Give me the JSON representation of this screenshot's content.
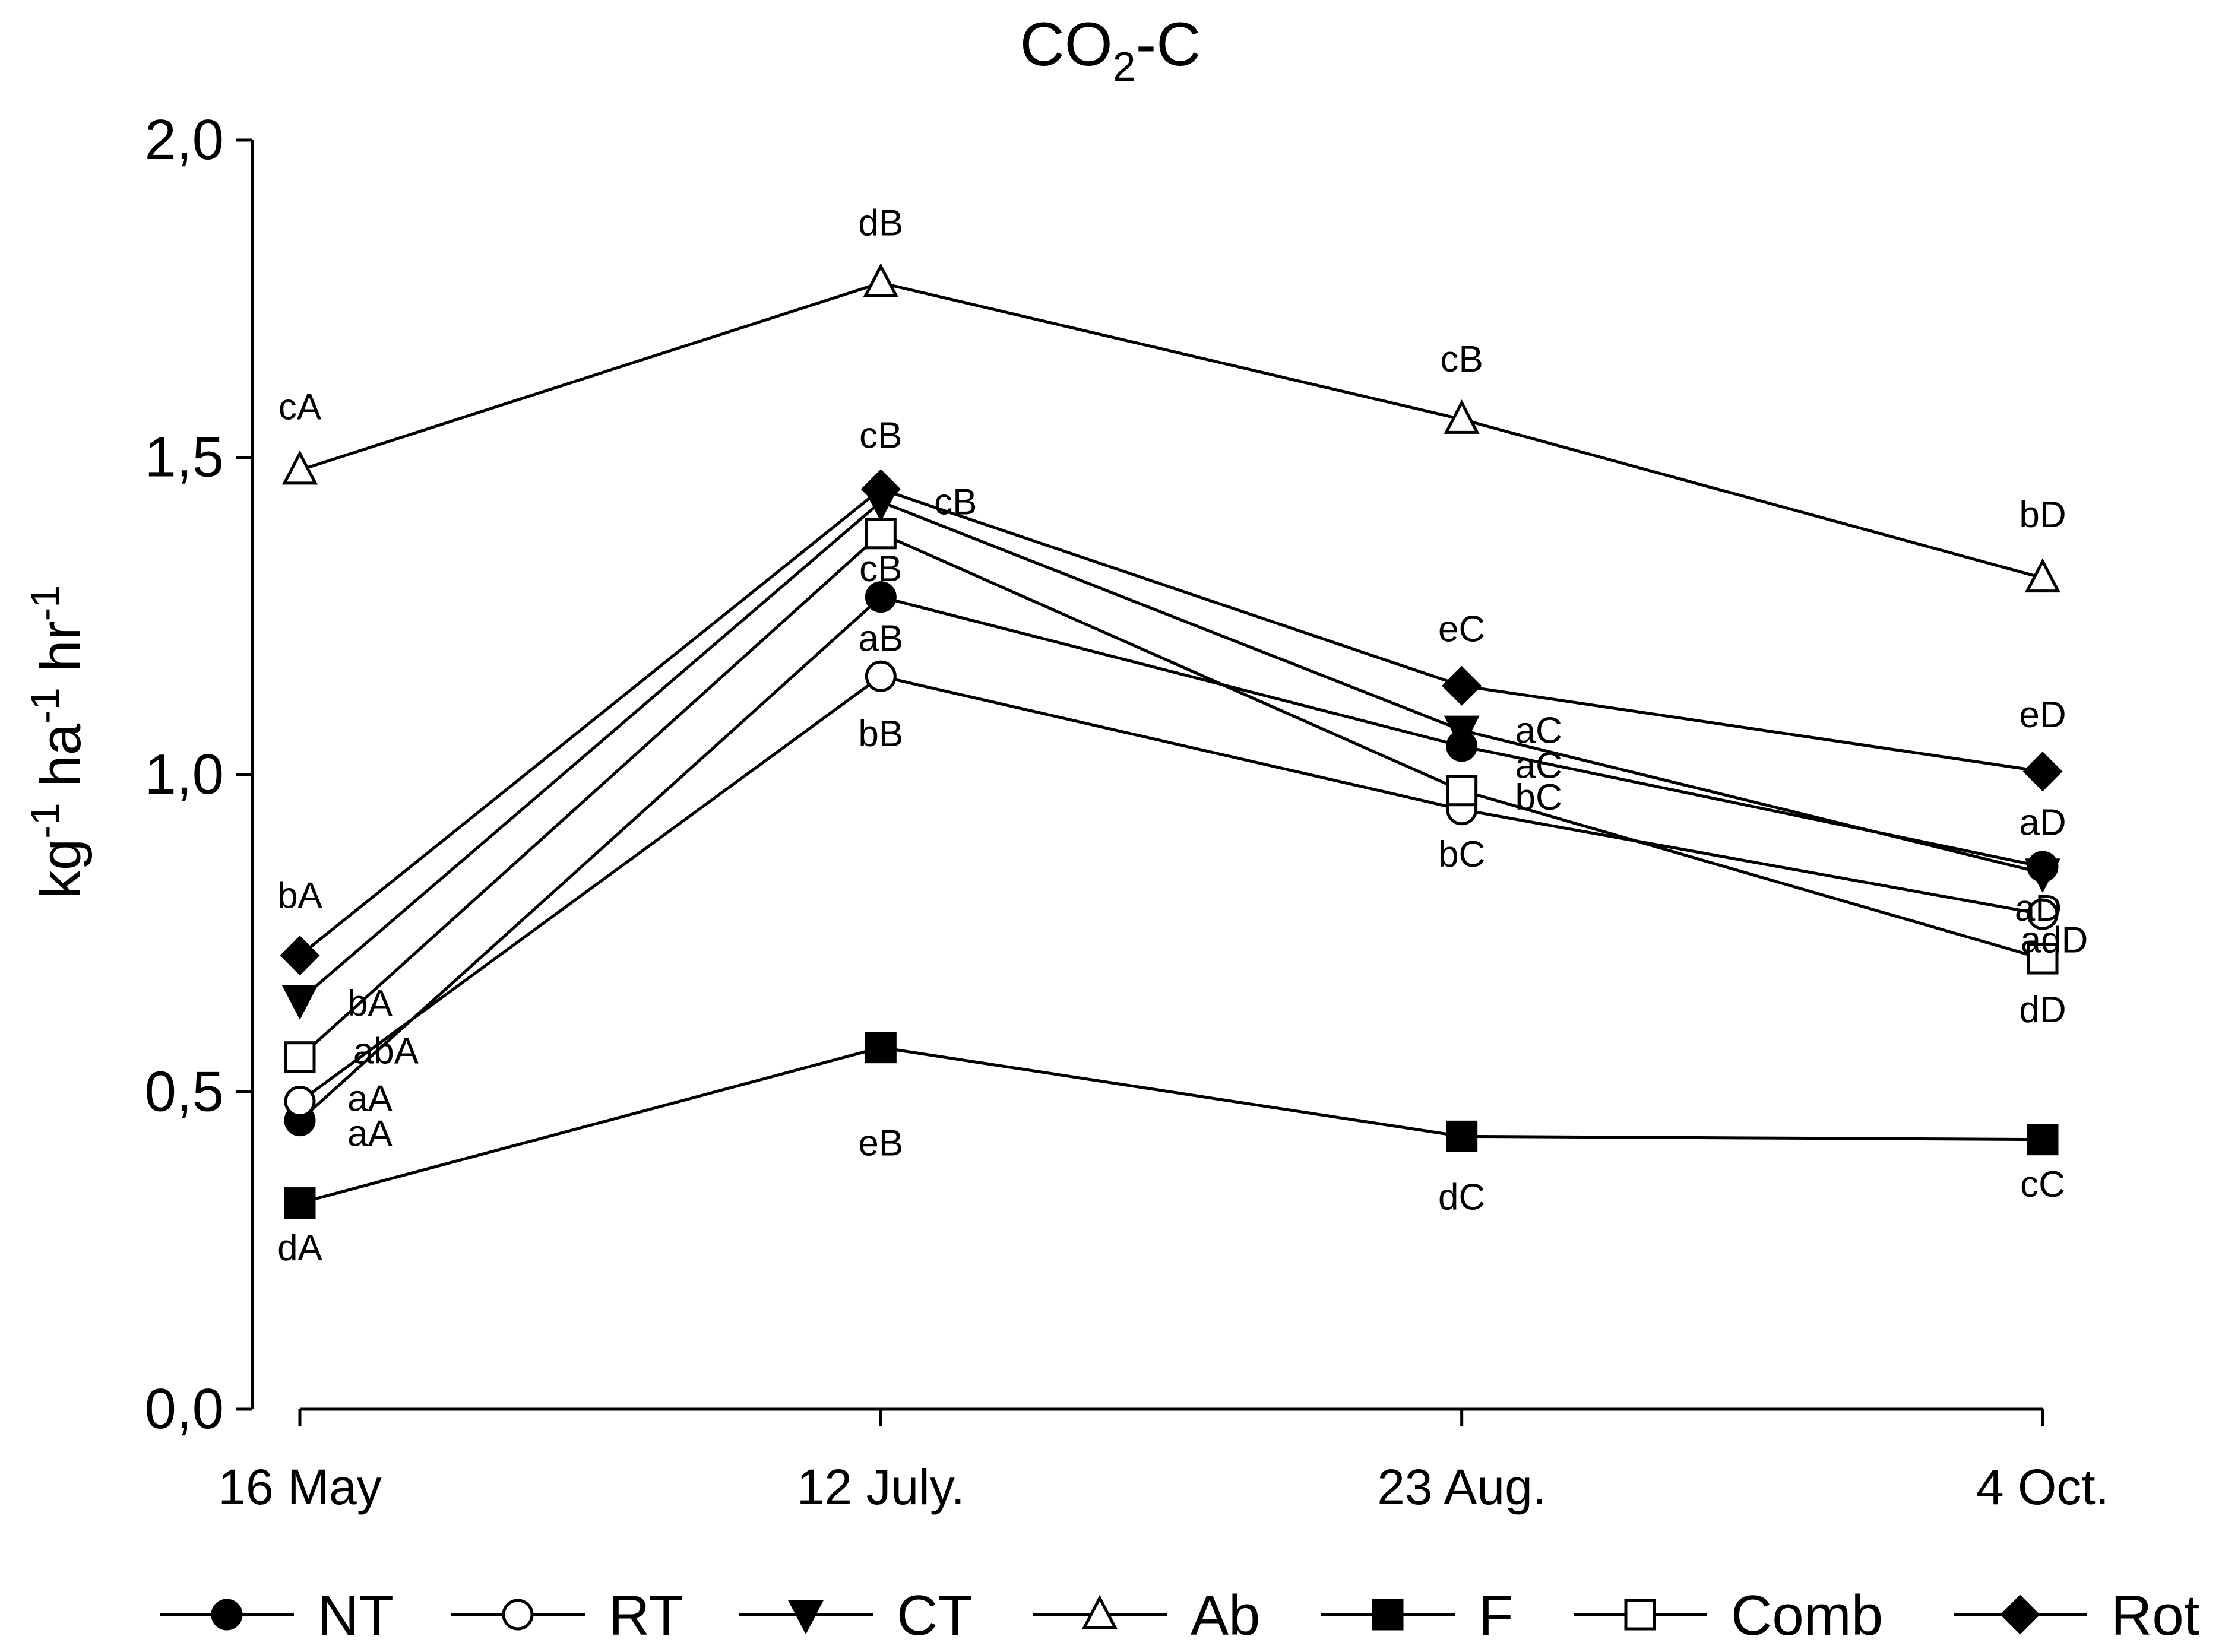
{
  "chart_data": {
    "type": "line",
    "title": {
      "main": "CO",
      "sub": "2",
      "rest": "-C"
    },
    "ylabel": {
      "parts": [
        {
          "t": "kg",
          "sup": false
        },
        {
          "t": "-1",
          "sup": true
        },
        {
          "t": " ha",
          "sup": false
        },
        {
          "t": "-1",
          "sup": true
        },
        {
          "t": " hr",
          "sup": false
        },
        {
          "t": "-1",
          "sup": true
        }
      ]
    },
    "xlabel": "",
    "categories": [
      "16 May",
      "12 July.",
      "23 Aug.",
      "4 Oct."
    ],
    "ylim": [
      0,
      2.0
    ],
    "yticks": [
      0,
      0.5,
      1.0,
      1.5,
      2.0
    ],
    "ytick_labels": [
      "0,0",
      "0,5",
      "1,0",
      "1,5",
      "2,0"
    ],
    "grid": false,
    "legend": {
      "position": "bottom"
    },
    "series": [
      {
        "name": "NT",
        "marker": "circle",
        "filled": true,
        "values": [
          0.455,
          1.28,
          1.045,
          0.855
        ]
      },
      {
        "name": "RT",
        "marker": "circle",
        "filled": false,
        "values": [
          0.485,
          1.155,
          0.945,
          0.78
        ]
      },
      {
        "name": "CT",
        "marker": "triangle-down",
        "filled": true,
        "values": [
          0.645,
          1.43,
          1.07,
          0.845
        ]
      },
      {
        "name": "Ab",
        "marker": "triangle-up",
        "filled": false,
        "values": [
          1.48,
          1.775,
          1.56,
          1.31
        ]
      },
      {
        "name": "F",
        "marker": "square",
        "filled": true,
        "values": [
          0.325,
          0.57,
          0.43,
          0.425
        ]
      },
      {
        "name": "Comb",
        "marker": "square",
        "filled": false,
        "values": [
          0.555,
          1.38,
          0.975,
          0.71
        ]
      },
      {
        "name": "Rot",
        "marker": "diamond",
        "filled": true,
        "values": [
          0.715,
          1.45,
          1.14,
          1.005
        ]
      }
    ],
    "annotations": [
      {
        "text": "cA",
        "category": 0,
        "y": 1.56
      },
      {
        "text": "bA",
        "category": 0,
        "y": 0.79
      },
      {
        "text": "bA",
        "category": 0,
        "y": 0.62,
        "dx": 0.09
      },
      {
        "text": "abA",
        "category": 0,
        "y": 0.545,
        "dx": 0.1
      },
      {
        "text": "aA",
        "category": 0,
        "y": 0.47,
        "dx": 0.09
      },
      {
        "text": "aA",
        "category": 0,
        "y": 0.415,
        "dx": 0.09
      },
      {
        "text": "dA",
        "category": 0,
        "y": 0.235
      },
      {
        "text": "dB",
        "category": 1,
        "y": 1.85
      },
      {
        "text": "cB",
        "category": 1,
        "y": 1.515
      },
      {
        "text": "cB",
        "category": 1,
        "y": 1.41,
        "dx": 0.1
      },
      {
        "text": "cB",
        "category": 1,
        "y": 1.305
      },
      {
        "text": "aB",
        "category": 1,
        "y": 1.195
      },
      {
        "text": "bB",
        "category": 1,
        "y": 1.045
      },
      {
        "text": "eB",
        "category": 1,
        "y": 0.4
      },
      {
        "text": "cB",
        "category": 2,
        "y": 1.635
      },
      {
        "text": "eC",
        "category": 2,
        "y": 1.21
      },
      {
        "text": "aC",
        "category": 2,
        "y": 1.05,
        "dx": 0.1
      },
      {
        "text": "aC",
        "category": 2,
        "y": 0.995,
        "dx": 0.1
      },
      {
        "text": "bC",
        "category": 2,
        "y": 0.945,
        "dx": 0.1
      },
      {
        "text": "bC",
        "category": 2,
        "y": 0.855
      },
      {
        "text": "dC",
        "category": 2,
        "y": 0.315
      },
      {
        "text": "bD",
        "category": 3,
        "y": 1.39
      },
      {
        "text": "eD",
        "category": 3,
        "y": 1.075
      },
      {
        "text": "aD",
        "category": 3,
        "y": 0.905
      },
      {
        "text": "aD",
        "category": 3,
        "y": 0.77,
        "dx": -0.04
      },
      {
        "text": "adD",
        "category": 3,
        "y": 0.72,
        "dx": -0.03
      },
      {
        "text": "dD",
        "category": 3,
        "y": 0.61
      },
      {
        "text": "cC",
        "category": 3,
        "y": 0.335
      }
    ]
  }
}
